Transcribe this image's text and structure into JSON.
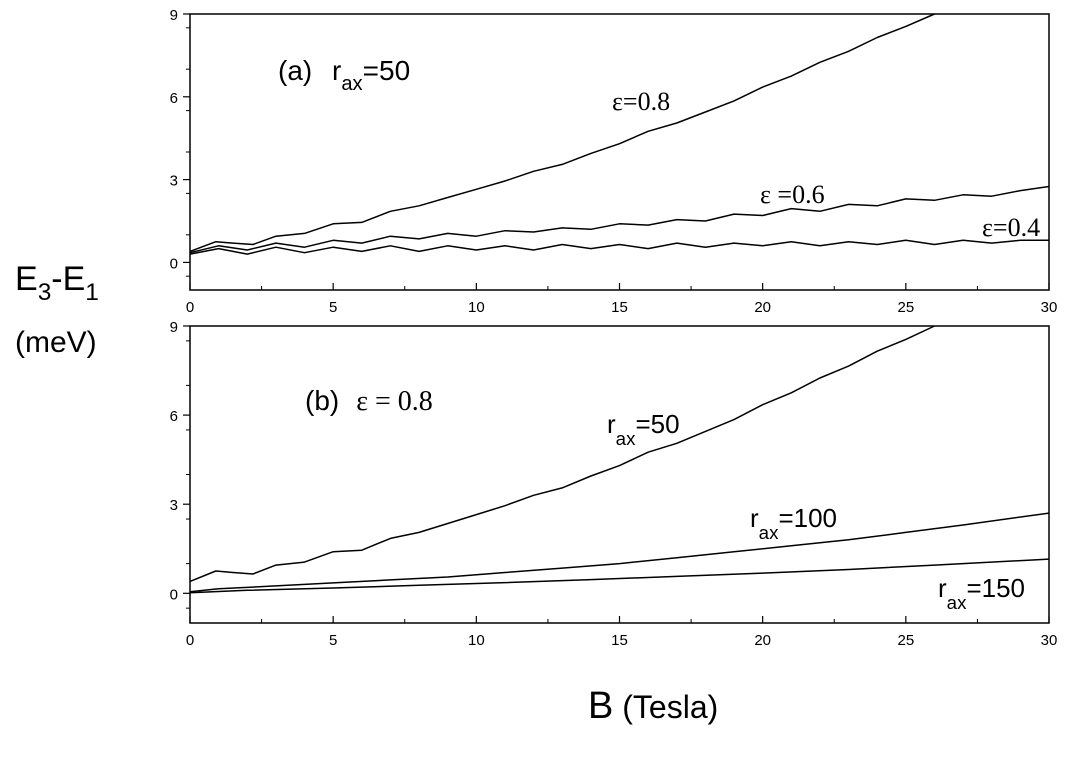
{
  "chart_data": [
    {
      "type": "line",
      "panel": "a",
      "annotation": {
        "prefix": "(a)",
        "symbol": "r",
        "subscript": "ax",
        "suffix": "=50"
      },
      "xlim": [
        0,
        30
      ],
      "ylim": [
        -1,
        9
      ],
      "x_ticks": [
        0,
        5,
        10,
        15,
        20,
        25,
        30
      ],
      "y_ticks": [
        0,
        3,
        6,
        9
      ],
      "xlabel": "",
      "grid": false,
      "series": [
        {
          "name": "ε=0.8",
          "label": {
            "text": "ε=0.8",
            "symbol": "ε",
            "value": "=0.8"
          },
          "x": [
            0,
            0.9,
            1.5,
            2.2,
            3.0,
            4.0,
            5.0,
            6.0,
            7.0,
            8.0,
            9.0,
            10.0,
            11.0,
            12.0,
            13.0,
            14.0,
            15.0,
            16.0,
            17.0,
            18.0,
            19.0,
            20.0,
            21.0,
            22.0,
            23.0,
            24.0,
            25.0,
            26.0
          ],
          "y": [
            0.4,
            0.75,
            0.7,
            0.65,
            0.95,
            1.05,
            1.4,
            1.45,
            1.85,
            2.05,
            2.35,
            2.65,
            2.95,
            3.3,
            3.55,
            3.95,
            4.3,
            4.75,
            5.05,
            5.45,
            5.85,
            6.35,
            6.75,
            7.25,
            7.65,
            8.15,
            8.55,
            9.0
          ]
        },
        {
          "name": "ε =0.6",
          "label": {
            "text": "ε =0.6",
            "symbol": "ε",
            "value": " =0.6"
          },
          "x": [
            0,
            1,
            2,
            3,
            4,
            5,
            6,
            7,
            8,
            9,
            10,
            11,
            12,
            13,
            14,
            15,
            16,
            17,
            18,
            19,
            20,
            21,
            22,
            23,
            24,
            25,
            26,
            27,
            28,
            29,
            30
          ],
          "y": [
            0.35,
            0.6,
            0.45,
            0.7,
            0.55,
            0.8,
            0.7,
            0.95,
            0.85,
            1.05,
            0.95,
            1.15,
            1.1,
            1.25,
            1.2,
            1.4,
            1.35,
            1.55,
            1.5,
            1.75,
            1.7,
            1.95,
            1.85,
            2.1,
            2.05,
            2.3,
            2.25,
            2.45,
            2.4,
            2.6,
            2.75
          ]
        },
        {
          "name": "ε=0.4",
          "label": {
            "text": "ε=0.4",
            "symbol": "ε",
            "value": "=0.4"
          },
          "x": [
            0,
            1,
            2,
            3,
            4,
            5,
            6,
            7,
            8,
            9,
            10,
            11,
            12,
            13,
            14,
            15,
            16,
            17,
            18,
            19,
            20,
            21,
            22,
            23,
            24,
            25,
            26,
            27,
            28,
            29,
            30
          ],
          "y": [
            0.3,
            0.5,
            0.3,
            0.55,
            0.35,
            0.55,
            0.4,
            0.6,
            0.4,
            0.6,
            0.45,
            0.6,
            0.45,
            0.65,
            0.5,
            0.65,
            0.5,
            0.7,
            0.55,
            0.7,
            0.6,
            0.75,
            0.6,
            0.75,
            0.65,
            0.8,
            0.65,
            0.8,
            0.7,
            0.8,
            0.8
          ]
        }
      ]
    },
    {
      "type": "line",
      "panel": "b",
      "annotation": {
        "prefix": "(b)",
        "symbol": "ε",
        "suffix": " = 0.8"
      },
      "xlim": [
        0,
        30
      ],
      "ylim": [
        -1,
        9
      ],
      "x_ticks": [
        0,
        5,
        10,
        15,
        20,
        25,
        30
      ],
      "y_ticks": [
        0,
        3,
        6,
        9
      ],
      "xlabel": "B (Tesla)",
      "grid": false,
      "series": [
        {
          "name": "r_ax=50",
          "label": {
            "symbol": "r",
            "subscript": "ax",
            "value": "=50"
          },
          "x": [
            0,
            0.9,
            1.5,
            2.2,
            3.0,
            4.0,
            5.0,
            6.0,
            7.0,
            8.0,
            9.0,
            10.0,
            11.0,
            12.0,
            13.0,
            14.0,
            15.0,
            16.0,
            17.0,
            18.0,
            19.0,
            20.0,
            21.0,
            22.0,
            23.0,
            24.0,
            25.0,
            26.0
          ],
          "y": [
            0.4,
            0.75,
            0.7,
            0.65,
            0.95,
            1.05,
            1.4,
            1.45,
            1.85,
            2.05,
            2.35,
            2.65,
            2.95,
            3.3,
            3.55,
            3.95,
            4.3,
            4.75,
            5.05,
            5.45,
            5.85,
            6.35,
            6.75,
            7.25,
            7.65,
            8.15,
            8.55,
            9.0
          ]
        },
        {
          "name": "r_ax=100",
          "label": {
            "symbol": "r",
            "subscript": "ax",
            "value": "=100"
          },
          "x": [
            0,
            1,
            3,
            5,
            7,
            9,
            11,
            13,
            15,
            17,
            19,
            21,
            23,
            25,
            27,
            30
          ],
          "y": [
            0.05,
            0.15,
            0.25,
            0.35,
            0.45,
            0.55,
            0.7,
            0.85,
            1.0,
            1.2,
            1.4,
            1.6,
            1.8,
            2.05,
            2.3,
            2.7
          ]
        },
        {
          "name": "r_ax=150",
          "label": {
            "symbol": "r",
            "subscript": "ax",
            "value": "=150"
          },
          "x": [
            0,
            2,
            5,
            8,
            11,
            14,
            17,
            20,
            23,
            26,
            30
          ],
          "y": [
            0.02,
            0.1,
            0.18,
            0.27,
            0.36,
            0.46,
            0.57,
            0.68,
            0.8,
            0.95,
            1.15
          ]
        }
      ]
    }
  ],
  "shared_ylabel": {
    "line1": "E",
    "sub1": "3",
    "dash": "-E",
    "sub2": "1",
    "line2": "(meV)"
  },
  "shared_xlabel": {
    "symbol": "B",
    "unit": " (Tesla)"
  }
}
